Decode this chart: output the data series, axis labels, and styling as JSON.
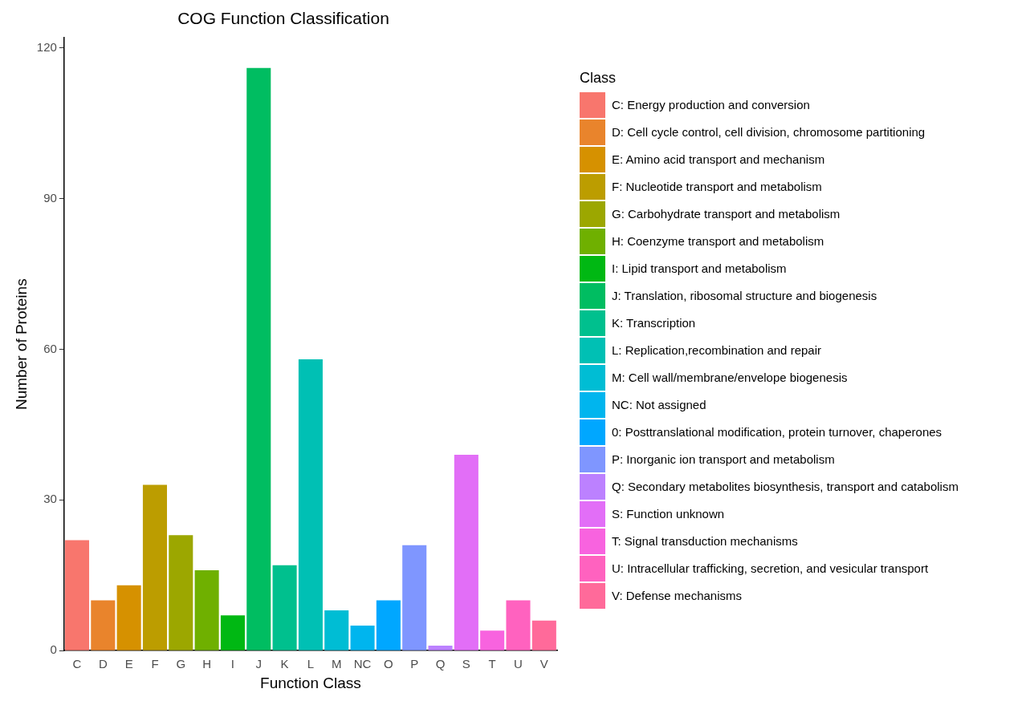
{
  "chart_data": {
    "type": "bar",
    "title": "COG Function Classification",
    "xlabel": "Function Class",
    "ylabel": "Number of Proteins",
    "legend_title": "Class",
    "legend": "right",
    "grid": false,
    "stacked": true,
    "categories": [
      "C",
      "D",
      "E",
      "F",
      "G",
      "H",
      "I",
      "J",
      "K",
      "L",
      "M",
      "NC",
      "O",
      "P",
      "Q",
      "S",
      "T",
      "U",
      "V"
    ],
    "ylim": [
      0,
      122
    ],
    "yticks": [
      0,
      30,
      60,
      90,
      120
    ],
    "series": [
      {
        "name": "C: Energy production and conversion",
        "color": "#f8766d",
        "values": [
          22,
          null,
          null,
          null,
          null,
          null,
          null,
          null,
          null,
          null,
          null,
          null,
          null,
          null,
          null,
          null,
          null,
          null,
          null
        ]
      },
      {
        "name": "D: Cell cycle control, cell division, chromosome partitioning",
        "color": "#e9842c",
        "values": [
          null,
          10,
          null,
          null,
          null,
          null,
          null,
          null,
          null,
          null,
          null,
          null,
          null,
          null,
          null,
          null,
          null,
          null,
          null
        ]
      },
      {
        "name": "E: Amino acid transport and mechanism",
        "color": "#d69100",
        "values": [
          null,
          null,
          13,
          null,
          null,
          null,
          null,
          null,
          null,
          null,
          null,
          null,
          null,
          null,
          null,
          null,
          null,
          null,
          null
        ]
      },
      {
        "name": "F: Nucleotide transport and metabolism",
        "color": "#bc9d00",
        "values": [
          null,
          null,
          null,
          33,
          null,
          null,
          null,
          null,
          null,
          null,
          null,
          null,
          null,
          null,
          null,
          null,
          null,
          null,
          null
        ]
      },
      {
        "name": "G: Carbohydrate transport and metabolism",
        "color": "#9ca700",
        "values": [
          null,
          null,
          null,
          null,
          23,
          null,
          null,
          null,
          null,
          null,
          null,
          null,
          null,
          null,
          null,
          null,
          null,
          null,
          null
        ]
      },
      {
        "name": "H: Coenzyme transport and metabolism",
        "color": "#6fb000",
        "values": [
          null,
          null,
          null,
          null,
          null,
          16,
          null,
          null,
          null,
          null,
          null,
          null,
          null,
          null,
          null,
          null,
          null,
          null,
          null
        ]
      },
      {
        "name": "I: Lipid transport and metabolism",
        "color": "#00b813",
        "values": [
          null,
          null,
          null,
          null,
          null,
          null,
          7,
          null,
          null,
          null,
          null,
          null,
          null,
          null,
          null,
          null,
          null,
          null,
          null
        ]
      },
      {
        "name": "J: Translation, ribosomal structure and biogenesis",
        "color": "#00bd61",
        "values": [
          null,
          null,
          null,
          null,
          null,
          null,
          null,
          116,
          null,
          null,
          null,
          null,
          null,
          null,
          null,
          null,
          null,
          null,
          null
        ]
      },
      {
        "name": "K: Transcription",
        "color": "#00c08e",
        "values": [
          null,
          null,
          null,
          null,
          null,
          null,
          null,
          null,
          17,
          null,
          null,
          null,
          null,
          null,
          null,
          null,
          null,
          null,
          null
        ]
      },
      {
        "name": "L: Replication,recombination and repair",
        "color": "#00c0b4",
        "values": [
          null,
          null,
          null,
          null,
          null,
          null,
          null,
          null,
          null,
          58,
          null,
          null,
          null,
          null,
          null,
          null,
          null,
          null,
          null
        ]
      },
      {
        "name": "M: Cell wall/membrane/envelope biogenesis",
        "color": "#00bdd4",
        "values": [
          null,
          null,
          null,
          null,
          null,
          null,
          null,
          null,
          null,
          null,
          8,
          null,
          null,
          null,
          null,
          null,
          null,
          null,
          null
        ]
      },
      {
        "name": "NC: Not assigned",
        "color": "#00b5ee",
        "values": [
          null,
          null,
          null,
          null,
          null,
          null,
          null,
          null,
          null,
          null,
          null,
          5,
          null,
          null,
          null,
          null,
          null,
          null,
          null
        ]
      },
      {
        "name": "0: Posttranslational modification, protein turnover, chaperones",
        "color": "#00a7ff",
        "values": [
          null,
          null,
          null,
          null,
          null,
          null,
          null,
          null,
          null,
          null,
          null,
          null,
          10,
          null,
          null,
          null,
          null,
          null,
          null
        ]
      },
      {
        "name": "P: Inorganic ion transport and metabolism",
        "color": "#7f96ff",
        "values": [
          null,
          null,
          null,
          null,
          null,
          null,
          null,
          null,
          null,
          null,
          null,
          null,
          null,
          21,
          null,
          null,
          null,
          null,
          null
        ]
      },
      {
        "name": "Q: Secondary metabolites biosynthesis, transport and catabolism",
        "color": "#bc81ff",
        "values": [
          null,
          null,
          null,
          null,
          null,
          null,
          null,
          null,
          null,
          null,
          null,
          null,
          null,
          null,
          1,
          null,
          null,
          null,
          null
        ]
      },
      {
        "name": "S: Function unknown",
        "color": "#e26ef7",
        "values": [
          null,
          null,
          null,
          null,
          null,
          null,
          null,
          null,
          null,
          null,
          null,
          null,
          null,
          null,
          null,
          39,
          null,
          null,
          null
        ]
      },
      {
        "name": "T: Signal transduction mechanisms",
        "color": "#f863df",
        "values": [
          null,
          null,
          null,
          null,
          null,
          null,
          null,
          null,
          null,
          null,
          null,
          null,
          null,
          null,
          null,
          null,
          4,
          null,
          null
        ]
      },
      {
        "name": "U: Intracellular trafficking, secretion, and vesicular transport",
        "color": "#ff62bf",
        "values": [
          null,
          null,
          null,
          null,
          null,
          null,
          null,
          null,
          null,
          null,
          null,
          null,
          null,
          null,
          null,
          null,
          null,
          10,
          null
        ]
      },
      {
        "name": "V: Defense mechanisms",
        "color": "#ff6a9a",
        "values": [
          null,
          null,
          null,
          null,
          null,
          null,
          null,
          null,
          null,
          null,
          null,
          null,
          null,
          null,
          null,
          null,
          null,
          null,
          6
        ]
      }
    ]
  }
}
